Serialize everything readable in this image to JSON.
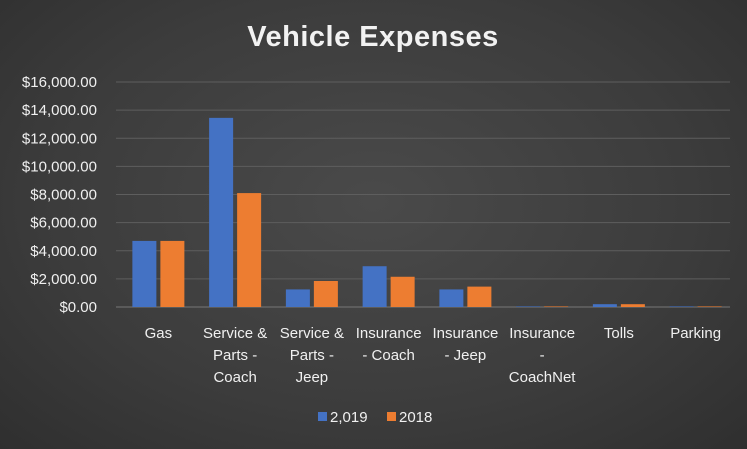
{
  "chart_data": {
    "type": "bar",
    "title": "Vehicle Expenses",
    "categories": [
      [
        "Gas"
      ],
      [
        "Service &",
        "Parts -",
        "Coach"
      ],
      [
        "Service &",
        "Parts -",
        "Jeep"
      ],
      [
        "Insurance",
        "- Coach"
      ],
      [
        "Insurance",
        "- Jeep"
      ],
      [
        "Insurance",
        "-",
        "CoachNet"
      ],
      [
        "Tolls"
      ],
      [
        "Parking"
      ]
    ],
    "series": [
      {
        "name": "2,019",
        "color": "#4472c4",
        "values": [
          4700,
          13450,
          1250,
          2900,
          1250,
          40,
          200,
          40
        ]
      },
      {
        "name": "2018",
        "color": "#ed7d31",
        "values": [
          4700,
          8100,
          1850,
          2150,
          1450,
          40,
          200,
          40
        ]
      }
    ],
    "ylim": [
      0,
      16000
    ],
    "yticks": [
      "$0.00",
      "$2,000.00",
      "$4,000.00",
      "$6,000.00",
      "$8,000.00",
      "$10,000.00",
      "$12,000.00",
      "$14,000.00",
      "$16,000.00"
    ],
    "ytick_values": [
      0,
      2000,
      4000,
      6000,
      8000,
      10000,
      12000,
      14000,
      16000
    ],
    "grid": true,
    "legend_position": "bottom"
  }
}
